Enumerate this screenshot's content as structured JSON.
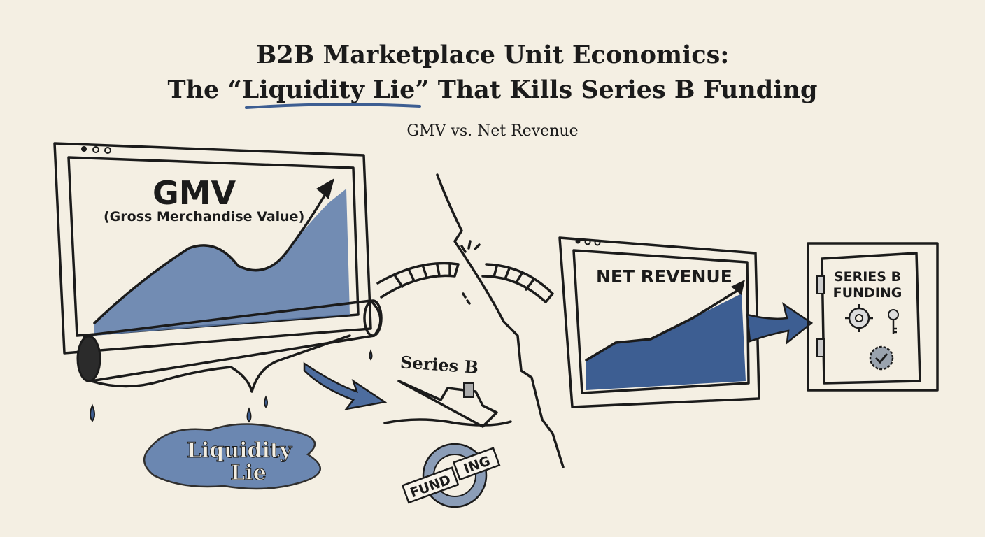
{
  "title": {
    "line1": "B2B Marketplace Unit Economics:",
    "line2": "The “Liquidity Lie” That Kills Series B Funding"
  },
  "subtitle": "GMV vs. Net Revenue",
  "gmv_panel": {
    "heading": "GMV",
    "subheading": "(Gross Merchandise Value)"
  },
  "puddle_label": {
    "line1": "Liquidity",
    "line2": "Lie"
  },
  "ship_label": "Series B",
  "broken_stamp": {
    "left": "FUND",
    "right": "ING"
  },
  "net_revenue_panel": {
    "heading": "NET REVENUE"
  },
  "safe": {
    "line1": "SERIES B",
    "line2": "FUNDING"
  },
  "colors": {
    "background": "#f4efe3",
    "ink": "#1b1b1b",
    "accent_blue": "#3d5e92",
    "light_blue": "#8aa3c6"
  }
}
